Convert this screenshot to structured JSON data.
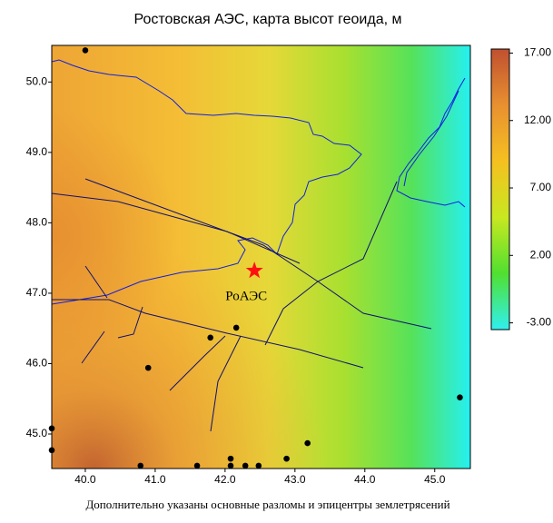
{
  "title": "Ростовская  АЭС,  карта высот геоида,  м",
  "footnote": "Дополнительно указаны  основные разломы и  эпицентры  землетрясений",
  "xlim": [
    39.52,
    45.51
  ],
  "ylim": [
    44.51,
    50.52
  ],
  "xticks": [
    {
      "value": 40,
      "label": "40.0"
    },
    {
      "value": 41,
      "label": "41.0"
    },
    {
      "value": 42,
      "label": "42.0"
    },
    {
      "value": 43,
      "label": "43.0"
    },
    {
      "value": 44,
      "label": "44.0"
    },
    {
      "value": 45,
      "label": "45.0"
    }
  ],
  "yticks": [
    {
      "value": 45,
      "label": "45.0"
    },
    {
      "value": 46,
      "label": "46.0"
    },
    {
      "value": 47,
      "label": "47.0"
    },
    {
      "value": 48,
      "label": "48.0"
    },
    {
      "value": 49,
      "label": "49.0"
    },
    {
      "value": 50,
      "label": "50.0"
    }
  ],
  "colorbar": {
    "lim": [
      -3.5,
      17.3
    ],
    "ticks": [
      {
        "value": -3,
        "label": "-3.00"
      },
      {
        "value": 2,
        "label": "2.00"
      },
      {
        "value": 7,
        "label": "7.00"
      },
      {
        "value": 12,
        "label": "12.00"
      },
      {
        "value": 17,
        "label": "17.00"
      }
    ],
    "colors": [
      "#30f0f0",
      "#50e030",
      "#c8e820",
      "#f5c020",
      "#e89030",
      "#c05030"
    ]
  },
  "station": {
    "name": "РоАЭС",
    "lon": 42.42,
    "lat": 47.32,
    "color": "#ff1010"
  },
  "epicenters": {
    "color": "#000000",
    "lon": [
      40.0,
      39.52,
      39.52,
      40.9,
      41.79,
      42.16,
      40.79,
      41.6,
      42.08,
      42.08,
      42.29,
      42.48,
      42.88,
      43.18,
      45.36
    ],
    "lat": [
      50.45,
      45.08,
      44.77,
      45.94,
      46.37,
      46.51,
      44.55,
      44.55,
      44.65,
      44.55,
      44.55,
      44.55,
      44.65,
      44.87,
      45.52
    ]
  }
}
